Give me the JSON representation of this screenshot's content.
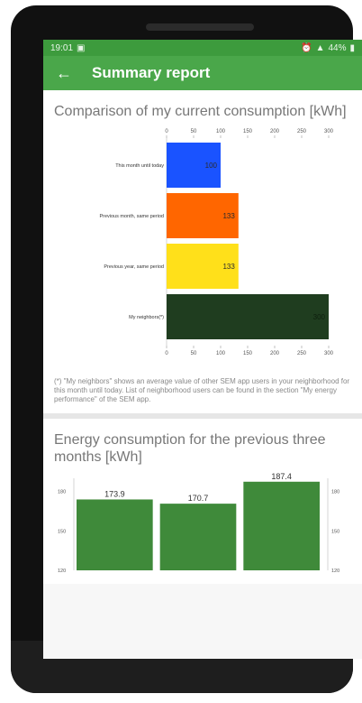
{
  "status_bar": {
    "time": "19:01",
    "battery": "44%"
  },
  "app_bar": {
    "title": "Summary report",
    "back_icon": "arrow-left-icon"
  },
  "sections": {
    "current": {
      "title": "Comparison of my current consumption [kWh]",
      "footnote": "(*) \"My neighbors\" shows an average value of other SEM app users in your neighborhood for this month until today. List of neighborhood users can be found in the section \"My energy performance\" of the SEM app."
    },
    "previous": {
      "title": "Energy consumption for the previous three months [kWh]"
    }
  },
  "chart_data": [
    {
      "type": "bar",
      "orientation": "horizontal",
      "title": "Comparison of my current consumption [kWh]",
      "categories": [
        "This month until today",
        "Previous month, same period",
        "Previous year, same period",
        "My neighbors(*)"
      ],
      "values": [
        100,
        133,
        133,
        300
      ],
      "value_labels": [
        "100",
        "133",
        "133",
        "300"
      ],
      "colors": [
        "#1a53ff",
        "#ff6600",
        "#ffe01a",
        "#1f3d1f"
      ],
      "xticks": [
        "0",
        "50",
        "100",
        "150",
        "200",
        "250",
        "300"
      ],
      "xlim": [
        0,
        300
      ]
    },
    {
      "type": "bar",
      "title": "Energy consumption for the previous three months [kWh]",
      "values": [
        173.9,
        170.7,
        187.4
      ],
      "value_labels": [
        "173.9",
        "170.7",
        "187.4"
      ],
      "color": "#3f8a3a",
      "yticks": [
        "180",
        "150",
        "120"
      ],
      "ylim": [
        120,
        190
      ]
    }
  ]
}
